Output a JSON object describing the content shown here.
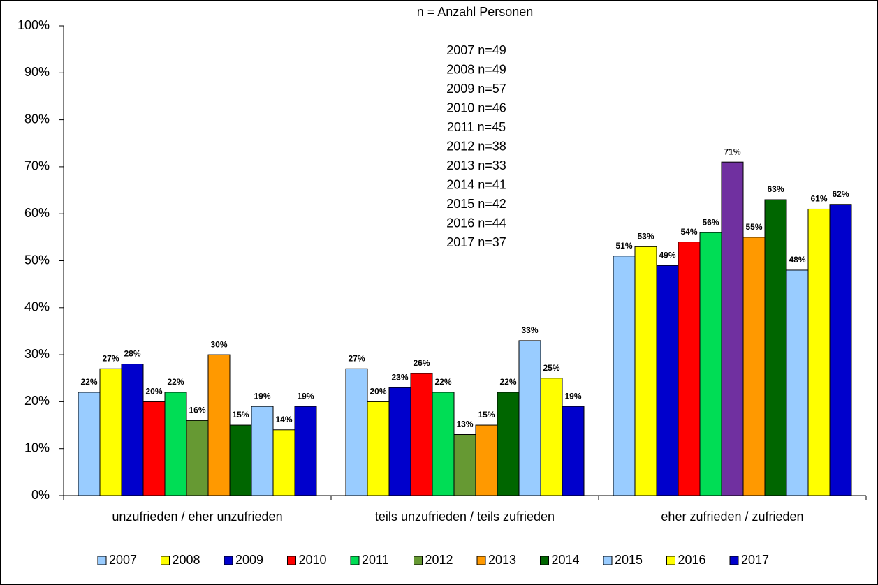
{
  "chart_data": {
    "type": "bar",
    "annotations": [
      "n = Anzahl Personen",
      "2007 n=49",
      "2008 n=49",
      "2009 n=57",
      "2010 n=46",
      "2011 n=45",
      "2012 n=38",
      "2013 n=33",
      "2014 n=41",
      "2015 n=42",
      "2016 n=44",
      "2017 n=37"
    ],
    "categories": [
      "unzufrieden / eher unzufrieden",
      "teils unzufrieden / teils zufrieden",
      "eher zufrieden / zufrieden"
    ],
    "series": [
      {
        "name": "2007",
        "color": "#99ccff",
        "values": [
          22,
          27,
          51
        ],
        "value_labels": [
          "22%",
          "27%",
          "51%"
        ]
      },
      {
        "name": "2008",
        "color": "#ffff00",
        "values": [
          27,
          20,
          53
        ],
        "value_labels": [
          "27%",
          "20%",
          "53%"
        ]
      },
      {
        "name": "2009",
        "color": "#0000cc",
        "values": [
          28,
          23,
          49
        ],
        "value_labels": [
          "28%",
          "23%",
          "49%"
        ]
      },
      {
        "name": "2010",
        "color": "#ff0000",
        "values": [
          20,
          26,
          54
        ],
        "value_labels": [
          "20%",
          "26%",
          "54%"
        ]
      },
      {
        "name": "2011",
        "color": "#00dd55",
        "values": [
          22,
          22,
          56
        ],
        "value_labels": [
          "22%",
          "22%",
          "56%"
        ]
      },
      {
        "name": "2012",
        "color": "#669933",
        "colors": [
          "#669933",
          "#669933",
          "#7030a0"
        ],
        "values": [
          16,
          13,
          71
        ],
        "value_labels": [
          "16%",
          "13%",
          "71%"
        ]
      },
      {
        "name": "2013",
        "color": "#ff9900",
        "values": [
          30,
          15,
          55
        ],
        "value_labels": [
          "30%",
          "15%",
          "55%"
        ]
      },
      {
        "name": "2014",
        "color": "#006600",
        "values": [
          15,
          22,
          63
        ],
        "value_labels": [
          "15%",
          "22%",
          "63%"
        ]
      },
      {
        "name": "2015",
        "color": "#99ccff",
        "values": [
          19,
          33,
          48
        ],
        "value_labels": [
          "19%",
          "33%",
          "48%"
        ]
      },
      {
        "name": "2016",
        "color": "#ffff00",
        "values": [
          14,
          25,
          61
        ],
        "value_labels": [
          "14%",
          "25%",
          "61%"
        ]
      },
      {
        "name": "2017",
        "color": "#0000cc",
        "values": [
          19,
          19,
          62
        ],
        "value_labels": [
          "19%",
          "19%",
          "62%"
        ]
      }
    ],
    "ylim": [
      0,
      100
    ],
    "yticks": [
      {
        "value": 0,
        "label": "0%"
      },
      {
        "value": 10,
        "label": "10%"
      },
      {
        "value": 20,
        "label": "20%"
      },
      {
        "value": 30,
        "label": "30%"
      },
      {
        "value": 40,
        "label": "40%"
      },
      {
        "value": 50,
        "label": "50%"
      },
      {
        "value": 60,
        "label": "60%"
      },
      {
        "value": 70,
        "label": "70%"
      },
      {
        "value": 80,
        "label": "80%"
      },
      {
        "value": 90,
        "label": "90%"
      },
      {
        "value": 100,
        "label": "100%"
      }
    ],
    "legend": "bottom"
  }
}
